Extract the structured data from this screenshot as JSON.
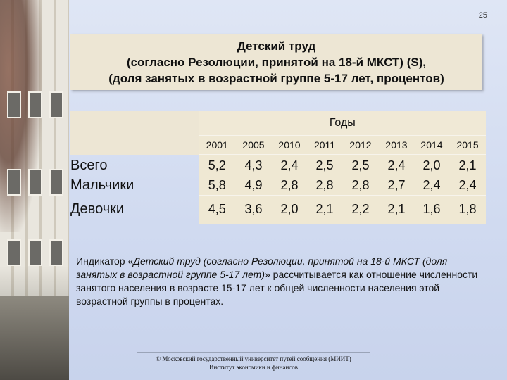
{
  "page_number": "25",
  "title": {
    "line1": "Детский труд",
    "line2": "(согласно Резолюции, принятой на 18-й МКСТ) (S),",
    "line3": "(доля занятых в возрастной группе 5-17 лет, процентов)"
  },
  "table": {
    "header": "Годы",
    "years": [
      "2001",
      "2005",
      "2010",
      "2011",
      "2012",
      "2013",
      "2014",
      "2015"
    ],
    "rows": [
      {
        "label": "Всего",
        "values": [
          "5,2",
          "4,3",
          "2,4",
          "2,5",
          "2,5",
          "2,4",
          "2,0",
          "2,1"
        ]
      },
      {
        "label": "Мальчики",
        "values": [
          "5,8",
          "4,9",
          "2,8",
          "2,8",
          "2,8",
          "2,7",
          "2,4",
          "2,4"
        ]
      },
      {
        "label": "Девочки",
        "values": [
          "4,5",
          "3,6",
          "2,0",
          "2,1",
          "2,2",
          "2,1",
          "1,6",
          "1,8"
        ]
      }
    ]
  },
  "note": {
    "prefix": "Индикатор «",
    "italic": "Детский труд (согласно Резолюции,  принятой на 18-й МКСТ (доля занятых в возрастной группе 5-17 лет)",
    "suffix": "» рассчитывается как отношение численности занятого населения в возрасте 15-17 лет к общей численности населения этой возрастной группы в процентах."
  },
  "footer": {
    "line1": "© Московский государственный университет путей сообщения (МИИТ)",
    "line2": "Институт экономики и финансов"
  }
}
